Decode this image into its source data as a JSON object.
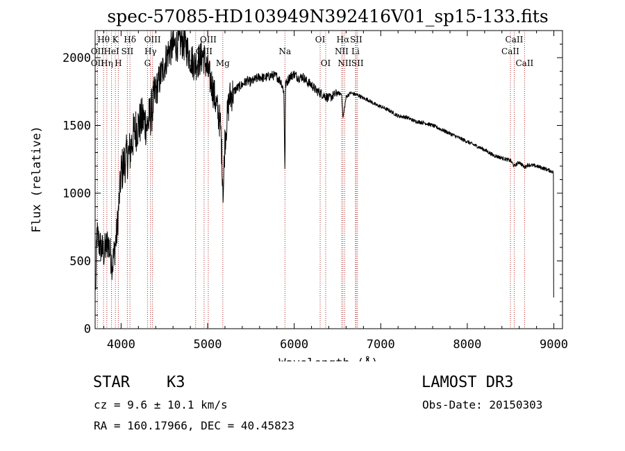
{
  "chart_data": {
    "type": "line",
    "title": "spec-57085-HD103949N392416V01_sp15-133.fits",
    "xlabel": "Wavelength (Å)",
    "ylabel": "Flux (relative)",
    "xlim": [
      3700,
      9100
    ],
    "ylim": [
      0,
      2200
    ],
    "xticks": [
      4000,
      5000,
      6000,
      7000,
      8000,
      9000
    ],
    "yticks": [
      0,
      500,
      1000,
      1500,
      2000
    ],
    "spectrum_anchors": {
      "wavelength": [
        3700,
        3720,
        3750,
        3800,
        3850,
        3900,
        3950,
        4000,
        4050,
        4100,
        4150,
        4200,
        4250,
        4300,
        4350,
        4400,
        4450,
        4500,
        4550,
        4600,
        4650,
        4700,
        4750,
        4800,
        4850,
        4900,
        4950,
        5000,
        5050,
        5100,
        5150,
        5180,
        5200,
        5250,
        5300,
        5350,
        5400,
        5450,
        5500,
        5550,
        5600,
        5650,
        5700,
        5750,
        5800,
        5850,
        5880,
        5893,
        5900,
        5950,
        6000,
        6050,
        6100,
        6150,
        6200,
        6250,
        6300,
        6350,
        6400,
        6450,
        6500,
        6550,
        6563,
        6600,
        6650,
        6700,
        6750,
        6800,
        6850,
        6900,
        6950,
        7000,
        7100,
        7200,
        7300,
        7400,
        7500,
        7600,
        7700,
        7800,
        7900,
        8000,
        8100,
        8200,
        8300,
        8400,
        8500,
        8542,
        8600,
        8662,
        8700,
        8800,
        8900,
        8980,
        9000
      ],
      "flux": [
        100,
        700,
        620,
        560,
        640,
        470,
        700,
        1150,
        1250,
        1300,
        1450,
        1500,
        1550,
        1500,
        1600,
        1750,
        1850,
        1950,
        2050,
        2080,
        2100,
        2120,
        2080,
        2000,
        1950,
        1980,
        2020,
        1900,
        1800,
        1650,
        1500,
        1000,
        1400,
        1700,
        1750,
        1780,
        1800,
        1830,
        1820,
        1840,
        1860,
        1850,
        1860,
        1870,
        1860,
        1820,
        1750,
        1150,
        1800,
        1860,
        1880,
        1850,
        1860,
        1820,
        1800,
        1760,
        1740,
        1720,
        1700,
        1720,
        1740,
        1730,
        1550,
        1710,
        1740,
        1730,
        1720,
        1700,
        1690,
        1670,
        1650,
        1640,
        1610,
        1570,
        1560,
        1530,
        1520,
        1500,
        1470,
        1440,
        1410,
        1380,
        1350,
        1320,
        1280,
        1260,
        1240,
        1200,
        1230,
        1190,
        1210,
        1200,
        1180,
        1160,
        1150
      ]
    },
    "line_markers": [
      {
        "name": "Hθ",
        "wavelength": 3797,
        "row": 1
      },
      {
        "name": "OII",
        "wavelength": 3727,
        "row": 2
      },
      {
        "name": "OII",
        "wavelength": 3727,
        "row": 3
      },
      {
        "name": "K",
        "wavelength": 3934,
        "row": 1
      },
      {
        "name": "Hη",
        "wavelength": 3835,
        "row": 3
      },
      {
        "name": "HeI",
        "wavelength": 3889,
        "row": 2
      },
      {
        "name": "Hδ",
        "wavelength": 4102,
        "row": 1
      },
      {
        "name": "SII",
        "wavelength": 4072,
        "row": 2
      },
      {
        "name": "H",
        "wavelength": 3968,
        "row": 3
      },
      {
        "name": "OIII",
        "wavelength": 4363,
        "row": 1
      },
      {
        "name": "Hγ",
        "wavelength": 4340,
        "row": 2
      },
      {
        "name": "G",
        "wavelength": 4305,
        "row": 3
      },
      {
        "name": "OIII",
        "wavelength": 5007,
        "row": 1
      },
      {
        "name": "OIII",
        "wavelength": 4959,
        "row": 2
      },
      {
        "name": "Hβ",
        "wavelength": 4861,
        "row": 3
      },
      {
        "name": "Mg",
        "wavelength": 5175,
        "row": 3
      },
      {
        "name": "Na",
        "wavelength": 5893,
        "row": 2
      },
      {
        "name": "OI",
        "wavelength": 6300,
        "row": 1
      },
      {
        "name": "OI",
        "wavelength": 6364,
        "row": 3
      },
      {
        "name": "Hα",
        "wavelength": 6563,
        "row": 1
      },
      {
        "name": "NII",
        "wavelength": 6548,
        "row": 2
      },
      {
        "name": "NII",
        "wavelength": 6583,
        "row": 3
      },
      {
        "name": "SII",
        "wavelength": 6716,
        "row": 1
      },
      {
        "name": "Li",
        "wavelength": 6708,
        "row": 2
      },
      {
        "name": "SII",
        "wavelength": 6731,
        "row": 3
      },
      {
        "name": "CaII",
        "wavelength": 8542,
        "row": 1
      },
      {
        "name": "CaII",
        "wavelength": 8498,
        "row": 2
      },
      {
        "name": "CaII",
        "wavelength": 8662,
        "row": 3
      }
    ]
  },
  "info": {
    "object_class": "STAR",
    "subclass": "K3",
    "survey": "LAMOST DR3",
    "redshift": "cz = 9.6 ± 10.1 km/s",
    "obs_date": "Obs-Date: 20150303",
    "coords": "RA = 160.17966, DEC =  40.45823"
  },
  "colors": {
    "spectrum": "#000000",
    "line_marker": "#b22222"
  }
}
